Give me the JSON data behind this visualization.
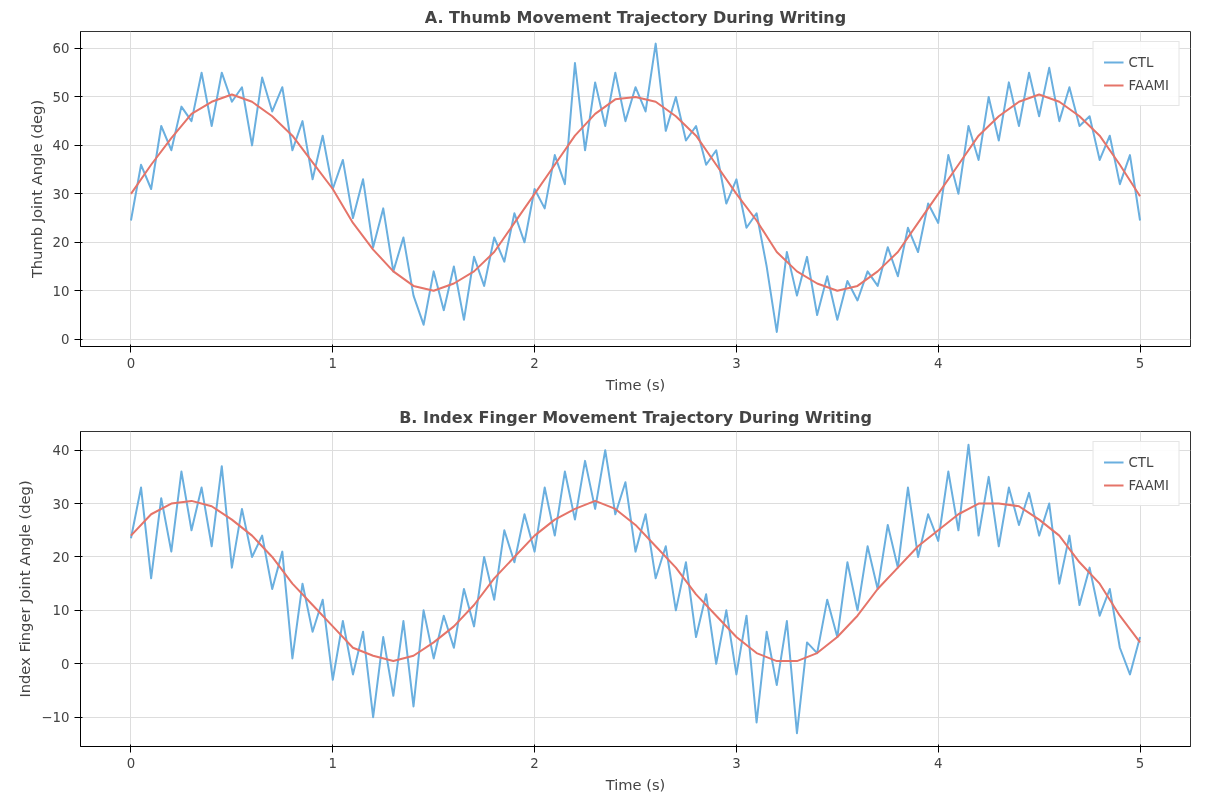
{
  "chart_data": [
    {
      "type": "line",
      "title": "A. Thumb Movement Trajectory During Writing",
      "xlabel": "Time (s)",
      "ylabel": "Thumb Joint Angle (deg)",
      "xlim": [
        -0.25,
        5.25
      ],
      "xticks": [
        0,
        1,
        2,
        3,
        4,
        5
      ],
      "ylim": [
        -1.5,
        63.5
      ],
      "yticks": [
        0,
        10,
        20,
        30,
        40,
        50,
        60
      ],
      "grid": true,
      "legend": "top right",
      "series": [
        {
          "name": "CTL",
          "color": "#6aafdf",
          "x": [
            0,
            0.05,
            0.1,
            0.15,
            0.2,
            0.25,
            0.3,
            0.35,
            0.4,
            0.45,
            0.5,
            0.55,
            0.6,
            0.65,
            0.7,
            0.75,
            0.8,
            0.85,
            0.9,
            0.95,
            1,
            1.05,
            1.1,
            1.15,
            1.2,
            1.25,
            1.3,
            1.35,
            1.4,
            1.45,
            1.5,
            1.55,
            1.6,
            1.65,
            1.7,
            1.75,
            1.8,
            1.85,
            1.9,
            1.95,
            2,
            2.05,
            2.1,
            2.15,
            2.2,
            2.25,
            2.3,
            2.35,
            2.4,
            2.45,
            2.5,
            2.55,
            2.6,
            2.65,
            2.7,
            2.75,
            2.8,
            2.85,
            2.9,
            2.95,
            3,
            3.05,
            3.1,
            3.15,
            3.2,
            3.25,
            3.3,
            3.35,
            3.4,
            3.45,
            3.5,
            3.55,
            3.6,
            3.65,
            3.7,
            3.75,
            3.8,
            3.85,
            3.9,
            3.95,
            4,
            4.05,
            4.1,
            4.15,
            4.2,
            4.25,
            4.3,
            4.35,
            4.4,
            4.45,
            4.5,
            4.55,
            4.6,
            4.65,
            4.7,
            4.75,
            4.8,
            4.85,
            4.9,
            4.95,
            5
          ],
          "values": [
            24.5,
            36,
            31,
            44,
            39,
            48,
            45,
            55,
            44,
            55,
            49,
            52,
            40,
            54,
            47,
            52,
            39,
            45,
            33,
            42,
            31,
            37,
            25,
            33,
            19,
            27,
            14,
            21,
            9,
            3,
            14,
            6,
            15,
            4,
            17,
            11,
            21,
            16,
            26,
            20,
            31,
            27,
            38,
            32,
            57,
            39,
            53,
            44,
            55,
            45,
            52,
            47,
            61,
            43,
            50,
            41,
            44,
            36,
            39,
            28,
            33,
            23,
            26,
            15,
            1.5,
            18,
            9,
            17,
            5,
            13,
            4,
            12,
            8,
            14,
            11,
            19,
            13,
            23,
            18,
            28,
            24,
            38,
            30,
            44,
            37,
            50,
            41,
            53,
            44,
            55,
            46,
            56,
            45,
            52,
            44,
            46,
            37,
            42,
            32,
            38,
            24.5
          ]
        },
        {
          "name": "FAAMI",
          "color": "#e57469",
          "x": [
            0,
            0.1,
            0.2,
            0.3,
            0.4,
            0.5,
            0.6,
            0.7,
            0.8,
            0.9,
            1,
            1.1,
            1.2,
            1.3,
            1.4,
            1.5,
            1.6,
            1.7,
            1.8,
            1.9,
            2,
            2.1,
            2.2,
            2.3,
            2.4,
            2.5,
            2.6,
            2.7,
            2.8,
            2.9,
            3,
            3.1,
            3.2,
            3.3,
            3.4,
            3.5,
            3.6,
            3.7,
            3.8,
            3.9,
            4,
            4.1,
            4.2,
            4.3,
            4.4,
            4.5,
            4.6,
            4.7,
            4.8,
            4.9,
            5
          ],
          "values": [
            30,
            36,
            41.5,
            46.5,
            49,
            50.5,
            49,
            46,
            42,
            36.5,
            31,
            24,
            18.5,
            14,
            11,
            10,
            11.5,
            14,
            18,
            24,
            30,
            36,
            42,
            46.5,
            49.5,
            50,
            49,
            46,
            42,
            36,
            30,
            24.5,
            18,
            14,
            11.5,
            10,
            11,
            14,
            18,
            24,
            30,
            36,
            42,
            46,
            49,
            50.5,
            49,
            46,
            42,
            36,
            29.5
          ]
        }
      ]
    },
    {
      "type": "line",
      "title": "B. Index Finger Movement Trajectory During Writing",
      "xlabel": "Time (s)",
      "ylabel": "Index Finger Joint Angle (deg)",
      "xlim": [
        -0.25,
        5.25
      ],
      "xticks": [
        0,
        1,
        2,
        3,
        4,
        5
      ],
      "ylim": [
        -15.5,
        43.5
      ],
      "yticks": [
        -10,
        0,
        10,
        20,
        30,
        40
      ],
      "grid": true,
      "legend": "top right",
      "series": [
        {
          "name": "CTL",
          "color": "#6aafdf",
          "x": [
            0,
            0.05,
            0.1,
            0.15,
            0.2,
            0.25,
            0.3,
            0.35,
            0.4,
            0.45,
            0.5,
            0.55,
            0.6,
            0.65,
            0.7,
            0.75,
            0.8,
            0.85,
            0.9,
            0.95,
            1,
            1.05,
            1.1,
            1.15,
            1.2,
            1.25,
            1.3,
            1.35,
            1.4,
            1.45,
            1.5,
            1.55,
            1.6,
            1.65,
            1.7,
            1.75,
            1.8,
            1.85,
            1.9,
            1.95,
            2,
            2.05,
            2.1,
            2.15,
            2.2,
            2.25,
            2.3,
            2.35,
            2.4,
            2.45,
            2.5,
            2.55,
            2.6,
            2.65,
            2.7,
            2.75,
            2.8,
            2.85,
            2.9,
            2.95,
            3,
            3.05,
            3.1,
            3.15,
            3.2,
            3.25,
            3.3,
            3.35,
            3.4,
            3.45,
            3.5,
            3.55,
            3.6,
            3.65,
            3.7,
            3.75,
            3.8,
            3.85,
            3.9,
            3.95,
            4,
            4.05,
            4.1,
            4.15,
            4.2,
            4.25,
            4.3,
            4.35,
            4.4,
            4.45,
            4.5,
            4.55,
            4.6,
            4.65,
            4.7,
            4.75,
            4.8,
            4.85,
            4.9,
            4.95,
            5
          ],
          "values": [
            23.5,
            33,
            16,
            31,
            21,
            36,
            25,
            33,
            22,
            37,
            18,
            29,
            20,
            24,
            14,
            21,
            1,
            15,
            6,
            12,
            -3,
            8,
            -2,
            6,
            -10,
            5,
            -6,
            8,
            -8,
            10,
            1,
            9,
            3,
            14,
            7,
            20,
            12,
            25,
            19,
            28,
            21,
            33,
            24,
            36,
            27,
            38,
            29,
            40,
            28,
            34,
            21,
            28,
            16,
            22,
            10,
            19,
            5,
            13,
            0,
            10,
            -2,
            9,
            -11,
            6,
            -4,
            8,
            -13,
            4,
            2,
            12,
            5,
            19,
            10,
            22,
            14,
            26,
            18,
            33,
            20,
            28,
            23,
            36,
            25,
            41,
            24,
            35,
            22,
            33,
            26,
            32,
            24,
            30,
            15,
            24,
            11,
            18,
            9,
            14,
            3,
            -2,
            5
          ]
        },
        {
          "name": "FAAMI",
          "color": "#e57469",
          "x": [
            0,
            0.1,
            0.2,
            0.3,
            0.4,
            0.5,
            0.6,
            0.7,
            0.8,
            0.9,
            1,
            1.1,
            1.2,
            1.3,
            1.4,
            1.5,
            1.6,
            1.7,
            1.8,
            1.9,
            2,
            2.1,
            2.2,
            2.3,
            2.4,
            2.5,
            2.6,
            2.7,
            2.8,
            2.9,
            3,
            3.1,
            3.2,
            3.3,
            3.4,
            3.5,
            3.6,
            3.7,
            3.8,
            3.9,
            4,
            4.1,
            4.2,
            4.3,
            4.4,
            4.5,
            4.6,
            4.7,
            4.8,
            4.9,
            5
          ],
          "values": [
            24,
            28,
            30,
            30.5,
            29.5,
            27,
            24,
            20,
            15,
            11,
            7,
            3,
            1.5,
            0.5,
            1.5,
            4,
            7,
            11,
            16,
            20,
            24,
            27,
            29,
            30.5,
            29,
            26,
            22,
            18,
            13,
            9,
            5,
            2,
            0.5,
            0.5,
            2,
            5,
            9,
            14,
            18,
            22,
            25,
            28,
            30,
            30,
            29.5,
            27,
            24,
            19,
            15,
            9,
            4
          ]
        }
      ]
    }
  ]
}
